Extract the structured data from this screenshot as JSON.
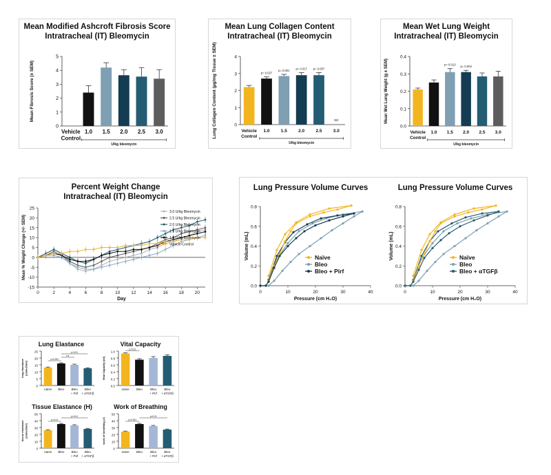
{
  "colors": {
    "yellow": "#f3b51f",
    "black": "#111111",
    "steel": "#7f9fb3",
    "navy": "#143c52",
    "teal": "#245c73",
    "gray": "#5d5d5d",
    "lightblue": "#8aaed0",
    "silver": "#b5b5b5",
    "periwinkle": "#a4b7d6"
  },
  "chart_data": [
    {
      "id": "ashcroft",
      "type": "bar",
      "title": [
        "Mean Modified Ashcroft Fibrosis Score",
        "Intratracheal (IT) Bleomycin"
      ],
      "ylabel": "Mean Fibrosis Score (± SEM)",
      "ylim": [
        0,
        5
      ],
      "yticks": [
        0,
        1,
        2,
        3,
        4,
        5
      ],
      "categories": [
        "Vehicle\nControl",
        "1.0",
        "1.5",
        "2.0",
        "2.5",
        "3.0"
      ],
      "group_label": "U/kg bleomycin",
      "values": [
        0,
        2.4,
        4.2,
        3.65,
        3.55,
        3.4
      ],
      "errors": [
        0,
        0.5,
        0.35,
        0.4,
        0.65,
        0.65
      ],
      "bar_colors": [
        "#f3b51f",
        "#111111",
        "#7f9fb3",
        "#143c52",
        "#245c73",
        "#5d5d5d"
      ]
    },
    {
      "id": "collagen",
      "type": "bar",
      "title": [
        "Mean Lung Collagen Content",
        "Intratracheal (IT) Bleomycin"
      ],
      "ylabel": "Lung Collagen Content (µg/mg Tissue ± SEM)",
      "ylim": [
        0,
        4
      ],
      "yticks": [
        0,
        1,
        2,
        3,
        4
      ],
      "categories": [
        "Vehicle\nControl",
        "1.0",
        "1.5",
        "2.0",
        "2.5",
        "3.0"
      ],
      "group_label": "U/kg bleomycin",
      "values": [
        2.2,
        2.7,
        2.85,
        2.9,
        2.9,
        null
      ],
      "errors": [
        0.1,
        0.1,
        0.1,
        0.15,
        0.15,
        null
      ],
      "annotations": [
        "",
        "p= 0.027",
        "p= 0.001",
        "p= 0.017",
        "p= 0.007",
        "ND"
      ],
      "bar_colors": [
        "#f3b51f",
        "#111111",
        "#7f9fb3",
        "#143c52",
        "#245c73",
        "#5d5d5d"
      ]
    },
    {
      "id": "wetweight",
      "type": "bar",
      "title": [
        "Mean Wet Lung Weight",
        "Intratracheal (IT) Bleomycin"
      ],
      "ylabel": "Mean Wet Lung Weight (g ± SEM)",
      "ylim": [
        0,
        0.4
      ],
      "yticks": [
        0.0,
        0.1,
        0.2,
        0.3,
        0.4
      ],
      "categories": [
        "Vehicle\nControl",
        "1.0",
        "1.5",
        "2.0",
        "2.5",
        "3.0"
      ],
      "group_label": "U/kg bleomycin",
      "values": [
        0.21,
        0.25,
        0.31,
        0.31,
        0.285,
        0.285
      ],
      "errors": [
        0.008,
        0.015,
        0.02,
        0.01,
        0.02,
        0.03
      ],
      "annotations": [
        "",
        "",
        "p= 0.013",
        "p= 0.004",
        "",
        ""
      ],
      "bar_colors": [
        "#f3b51f",
        "#111111",
        "#7f9fb3",
        "#143c52",
        "#245c73",
        "#5d5d5d"
      ]
    },
    {
      "id": "weightchange",
      "type": "line",
      "title": [
        "Percent Weight Change",
        "Intratracheal (IT) Bleomycin"
      ],
      "xlabel": "Day",
      "ylabel": "Mean % Weight Change (+/- SEM)",
      "xlim": [
        0,
        21
      ],
      "ylim": [
        -15,
        25
      ],
      "xticks": [
        0,
        2,
        4,
        6,
        8,
        10,
        12,
        14,
        16,
        18,
        20
      ],
      "yticks": [
        -15,
        -10,
        -5,
        0,
        5,
        10,
        15,
        20,
        25
      ],
      "x": [
        0,
        1,
        2,
        3,
        4,
        5,
        6,
        7,
        8,
        9,
        10,
        11,
        12,
        13,
        14,
        15,
        16,
        17,
        18,
        19,
        20,
        21
      ],
      "series": [
        {
          "name": "3.0 U/kg Bleomycin",
          "color": "#b5b5b5",
          "values": [
            0,
            1,
            2,
            1,
            -3,
            -6,
            -7,
            -6,
            -4,
            -2,
            -1,
            0,
            1,
            2,
            4,
            5,
            7,
            8,
            10,
            11,
            13,
            14
          ]
        },
        {
          "name": "2.5 U/kg Bleomycin",
          "color": "#5d5d5d",
          "values": [
            0,
            1,
            3,
            1,
            -2,
            -4,
            -5,
            -4,
            -2,
            0,
            1,
            2,
            3,
            4,
            5,
            7,
            9,
            10,
            12,
            13,
            14,
            15
          ]
        },
        {
          "name": "2.0 U/kg Bleomycin",
          "color": "#245c73",
          "values": [
            0,
            2,
            4,
            2,
            0,
            -2,
            -3,
            -1,
            1,
            3,
            4,
            5,
            6,
            7,
            8,
            10,
            12,
            14,
            15,
            16,
            18,
            19
          ]
        },
        {
          "name": "1.5 U/kg Bleomycin",
          "color": "#8aaed0",
          "values": [
            0,
            1,
            1,
            0,
            -3,
            -5,
            -6,
            -6,
            -5,
            -4,
            -3,
            -2,
            -1,
            0,
            1,
            2,
            4,
            6,
            8,
            9,
            10,
            11
          ]
        },
        {
          "name": "1.0 U/kg Bleomycin",
          "color": "#111111",
          "values": [
            0,
            1,
            2,
            1,
            -1,
            -2,
            -2,
            -1,
            1,
            2,
            3,
            3,
            4,
            4,
            5,
            6,
            8,
            9,
            10,
            11,
            12,
            13
          ]
        },
        {
          "name": "Vehicle Control",
          "color": "#f3b51f",
          "values": [
            0,
            1,
            2,
            2,
            3,
            3,
            4,
            4,
            5,
            5,
            5,
            6,
            6,
            6,
            7,
            7,
            8,
            8,
            9,
            9,
            10,
            10
          ]
        }
      ]
    },
    {
      "id": "pv1",
      "type": "line",
      "title": [
        "Lung Pressure Volume Curves"
      ],
      "xlabel": "Pressure (cm H₂O)",
      "ylabel": "Volume (mL)",
      "xlim": [
        0,
        40
      ],
      "ylim": [
        0,
        0.8
      ],
      "xticks": [
        0,
        10,
        20,
        30,
        40
      ],
      "yticks": [
        0.0,
        0.2,
        0.4,
        0.6,
        0.8
      ],
      "series": [
        {
          "name": "Naïve",
          "color": "#f3b51f",
          "x": [
            0,
            2,
            3,
            5,
            7,
            9,
            11,
            13,
            18,
            23,
            28,
            33
          ],
          "y": [
            0,
            0,
            0.05,
            0.2,
            0.32,
            0.45,
            0.55,
            0.63,
            0.7,
            0.74,
            0.77,
            0.81
          ]
        },
        {
          "name": "Bleo",
          "color": "#7f9fb3",
          "x": [
            0,
            3,
            5,
            8,
            11,
            14,
            18,
            22,
            26,
            30,
            34,
            37
          ],
          "y": [
            0,
            0,
            0.05,
            0.15,
            0.24,
            0.32,
            0.4,
            0.48,
            0.56,
            0.63,
            0.7,
            0.75
          ]
        },
        {
          "name": "Bleo + Pirf",
          "color": "#143c52",
          "x": [
            0,
            2,
            3,
            5,
            7,
            10,
            13,
            16,
            20,
            25,
            30,
            34
          ],
          "y": [
            0,
            0,
            0.04,
            0.18,
            0.3,
            0.4,
            0.48,
            0.55,
            0.61,
            0.66,
            0.7,
            0.73
          ]
        }
      ],
      "returns": [
        {
          "color": "#f3b51f",
          "x": [
            33,
            25,
            18,
            13,
            9,
            6,
            3
          ],
          "y": [
            0.81,
            0.78,
            0.72,
            0.64,
            0.52,
            0.36,
            0.1
          ]
        },
        {
          "color": "#7f9fb3",
          "x": [
            37,
            30,
            24,
            19,
            14,
            10,
            6,
            3
          ],
          "y": [
            0.75,
            0.72,
            0.68,
            0.63,
            0.55,
            0.43,
            0.27,
            0.05
          ]
        },
        {
          "color": "#143c52",
          "x": [
            34,
            28,
            22,
            17,
            12,
            9,
            6,
            3
          ],
          "y": [
            0.73,
            0.71,
            0.68,
            0.62,
            0.54,
            0.44,
            0.3,
            0.06
          ]
        }
      ]
    },
    {
      "id": "pv2",
      "type": "line",
      "title": [
        "Lung Pressure Volume Curves"
      ],
      "xlabel": "Pressure (cm H₂O)",
      "ylabel": "Volume (mL)",
      "xlim": [
        0,
        40
      ],
      "ylim": [
        0,
        0.8
      ],
      "xticks": [
        0,
        10,
        20,
        30,
        40
      ],
      "yticks": [
        0.0,
        0.2,
        0.4,
        0.6,
        0.8
      ],
      "series": [
        {
          "name": "Naïve",
          "color": "#f3b51f",
          "x": [
            0,
            2,
            3,
            5,
            7,
            9,
            11,
            13,
            18,
            23,
            28,
            33
          ],
          "y": [
            0,
            0,
            0.05,
            0.2,
            0.32,
            0.45,
            0.55,
            0.63,
            0.7,
            0.74,
            0.77,
            0.81
          ]
        },
        {
          "name": "Bleo",
          "color": "#7f9fb3",
          "x": [
            0,
            3,
            5,
            8,
            11,
            14,
            18,
            22,
            26,
            30,
            34,
            37
          ],
          "y": [
            0,
            0,
            0.05,
            0.15,
            0.24,
            0.32,
            0.4,
            0.48,
            0.56,
            0.63,
            0.7,
            0.75
          ]
        },
        {
          "name": "Bleo + αTGFβ",
          "color": "#245c73",
          "x": [
            0,
            2,
            3,
            5,
            7,
            10,
            13,
            16,
            20,
            25,
            30,
            34
          ],
          "y": [
            0,
            0,
            0.04,
            0.16,
            0.28,
            0.38,
            0.46,
            0.53,
            0.6,
            0.66,
            0.71,
            0.75
          ]
        }
      ],
      "returns": [
        {
          "color": "#f3b51f",
          "x": [
            33,
            25,
            18,
            13,
            9,
            6,
            3
          ],
          "y": [
            0.81,
            0.78,
            0.72,
            0.64,
            0.52,
            0.36,
            0.1
          ]
        },
        {
          "color": "#7f9fb3",
          "x": [
            37,
            30,
            24,
            19,
            14,
            10,
            6,
            3
          ],
          "y": [
            0.75,
            0.72,
            0.68,
            0.63,
            0.55,
            0.43,
            0.27,
            0.05
          ]
        },
        {
          "color": "#245c73",
          "x": [
            34,
            28,
            22,
            17,
            12,
            9,
            6,
            3
          ],
          "y": [
            0.75,
            0.73,
            0.69,
            0.63,
            0.55,
            0.45,
            0.3,
            0.06
          ]
        }
      ]
    },
    {
      "id": "elastance",
      "type": "bar",
      "title": [
        "Lung Elastance"
      ],
      "ylabel": "lung elastance\n(cmH₂O/ml)",
      "ylim": [
        0,
        25
      ],
      "yticks": [
        0,
        5,
        10,
        15,
        20,
        25
      ],
      "categories": [
        "naïve",
        "Bleo",
        "Bleo\n+ Pirf",
        "Bleo\n+ αTGFβ"
      ],
      "values": [
        13,
        16,
        15,
        12.5
      ],
      "errors": [
        0.4,
        0.5,
        0.5,
        0.4
      ],
      "sig": [
        "p<0.001",
        "n.s.",
        "p<0.01"
      ],
      "bar_colors": [
        "#f3b51f",
        "#111111",
        "#a4b7d6",
        "#245c73"
      ]
    },
    {
      "id": "vitalcap",
      "type": "bar",
      "title": [
        "Vital Capacity"
      ],
      "ylabel": "Vital Capacity (ml)",
      "ylim": [
        0.0,
        1.0
      ],
      "yticks": [
        0.0,
        0.2,
        0.4,
        0.6,
        0.8,
        1.0
      ],
      "categories": [
        "naïve",
        "Bleo",
        "Bleo\n+ Pirf",
        "Bleo\n+ αTGFβ"
      ],
      "values": [
        0.93,
        0.75,
        0.8,
        0.86
      ],
      "errors": [
        0.02,
        0.03,
        0.04,
        0.03
      ],
      "sig": [
        "p<0.01"
      ],
      "bar_colors": [
        "#f3b51f",
        "#111111",
        "#a4b7d6",
        "#245c73"
      ]
    },
    {
      "id": "tissue",
      "type": "bar",
      "title": [
        "Tissue Elastance (H)"
      ],
      "ylabel": "tissue elastance\n(cmH₂O/ml)",
      "ylim": [
        0,
        50
      ],
      "yticks": [
        0,
        10,
        20,
        30,
        40,
        50
      ],
      "categories": [
        "naïve",
        "Bleo",
        "Bleo\n+ Pirf",
        "Bleo\n+ αTGFβ"
      ],
      "values": [
        26,
        35,
        33,
        28
      ],
      "errors": [
        0.8,
        1,
        1,
        0.8
      ],
      "sig": [
        "p<0.01",
        "p<0.01"
      ],
      "bar_colors": [
        "#f3b51f",
        "#111111",
        "#a4b7d6",
        "#245c73"
      ]
    },
    {
      "id": "wob",
      "type": "bar",
      "title": [
        "Work of Breathing"
      ],
      "ylabel": "work of breathing (J)",
      "ylim": [
        0,
        50
      ],
      "yticks": [
        0,
        10,
        20,
        30,
        40,
        50
      ],
      "categories": [
        "naïve",
        "Bleo",
        "Bleo\n+ Pirf",
        "Bleo\n+ αTGFβ"
      ],
      "values": [
        24,
        35,
        32,
        27
      ],
      "errors": [
        0.8,
        1,
        1,
        0.8
      ],
      "sig": [
        "p<0.001",
        "p<0.01"
      ],
      "bar_colors": [
        "#f3b51f",
        "#111111",
        "#a4b7d6",
        "#245c73"
      ]
    }
  ]
}
